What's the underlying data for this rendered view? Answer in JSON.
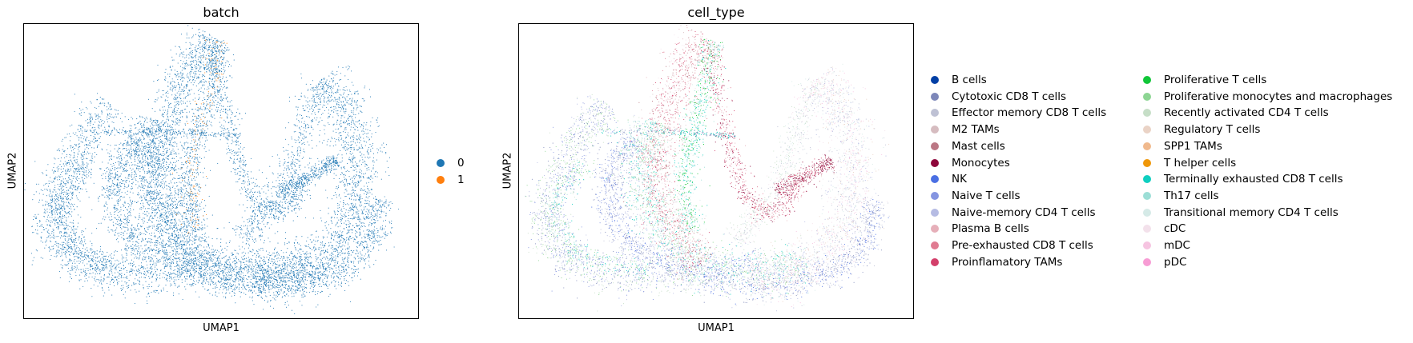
{
  "chart_data": [
    {
      "type": "scatter",
      "title": "batch",
      "xlabel": "UMAP1",
      "ylabel": "UMAP2",
      "grid": false,
      "legend_placement": "right",
      "series": [
        {
          "name": "0",
          "color": "#1f77b4"
        },
        {
          "name": "1",
          "color": "#ff7f0e"
        }
      ]
    },
    {
      "type": "scatter",
      "title": "cell_type",
      "xlabel": "UMAP1",
      "ylabel": "UMAP2",
      "grid": false,
      "legend_placement": "right",
      "series": [
        {
          "name": "B cells",
          "color": "#023fa5"
        },
        {
          "name": "Cytotoxic CD8 T cells",
          "color": "#7d87b9"
        },
        {
          "name": "Effector memory CD8 T cells",
          "color": "#bec1d4"
        },
        {
          "name": "M2 TAMs",
          "color": "#d6bcc0"
        },
        {
          "name": "Mast cells",
          "color": "#bb7784"
        },
        {
          "name": "Monocytes",
          "color": "#8e063b"
        },
        {
          "name": "NK",
          "color": "#4a6fe3"
        },
        {
          "name": "Naive T cells",
          "color": "#8595e1"
        },
        {
          "name": "Naive-memory CD4 T cells",
          "color": "#b5bbe3"
        },
        {
          "name": "Plasma B cells",
          "color": "#e6afb9"
        },
        {
          "name": "Pre-exhausted CD8 T cells",
          "color": "#e07b91"
        },
        {
          "name": "Proinflamatory TAMs",
          "color": "#d33f6a"
        },
        {
          "name": "Proliferative T cells",
          "color": "#11c638"
        },
        {
          "name": "Proliferative monocytes and macrophages",
          "color": "#8dd593"
        },
        {
          "name": "Recently activated CD4 T cells",
          "color": "#c6dec7"
        },
        {
          "name": "Regulatory T cells",
          "color": "#ead3c6"
        },
        {
          "name": "SPP1 TAMs",
          "color": "#f0b98d"
        },
        {
          "name": "T helper cells",
          "color": "#ef9708"
        },
        {
          "name": "Terminally exhausted CD8 T cells",
          "color": "#0fcfc0"
        },
        {
          "name": "Th17 cells",
          "color": "#9cded6"
        },
        {
          "name": "Transitional memory CD4 T cells",
          "color": "#d5eae7"
        },
        {
          "name": "cDC",
          "color": "#f3e1eb"
        },
        {
          "name": "mDC",
          "color": "#f6c4e1"
        },
        {
          "name": "pDC",
          "color": "#f79cd4"
        }
      ]
    }
  ]
}
